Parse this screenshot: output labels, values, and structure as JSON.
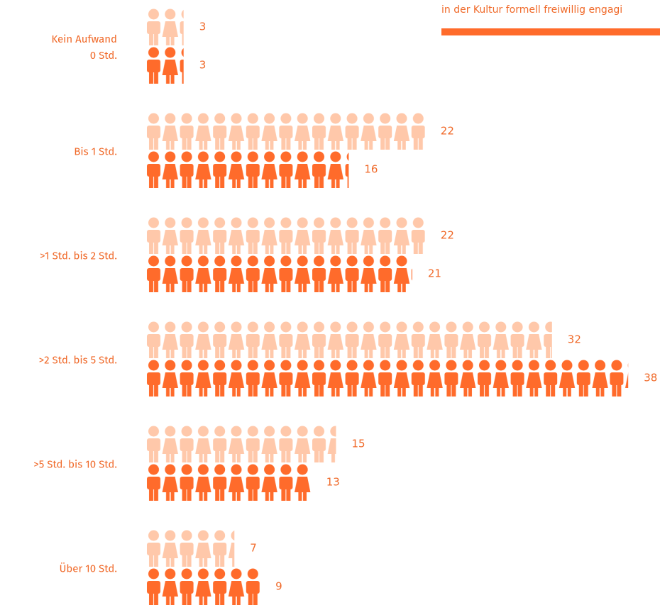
{
  "chart_data": {
    "type": "pictograph",
    "categories": [
      "Kein Aufwand\n0 Std.",
      "Bis 1 Std.",
      ">1 Std. bis 2 Std.",
      ">2 Std. bis 5 Std.",
      ">5 Std. bis 10 Std.",
      "Über 10 Std."
    ],
    "series": [
      {
        "color": "#ffc8aa",
        "values": [
          3,
          22,
          22,
          32,
          15,
          7
        ]
      },
      {
        "name": "in der Kultur formell freiwillig engagi",
        "color": "#ff6b2b",
        "values": [
          3,
          16,
          21,
          38,
          13,
          9
        ]
      }
    ]
  }
}
